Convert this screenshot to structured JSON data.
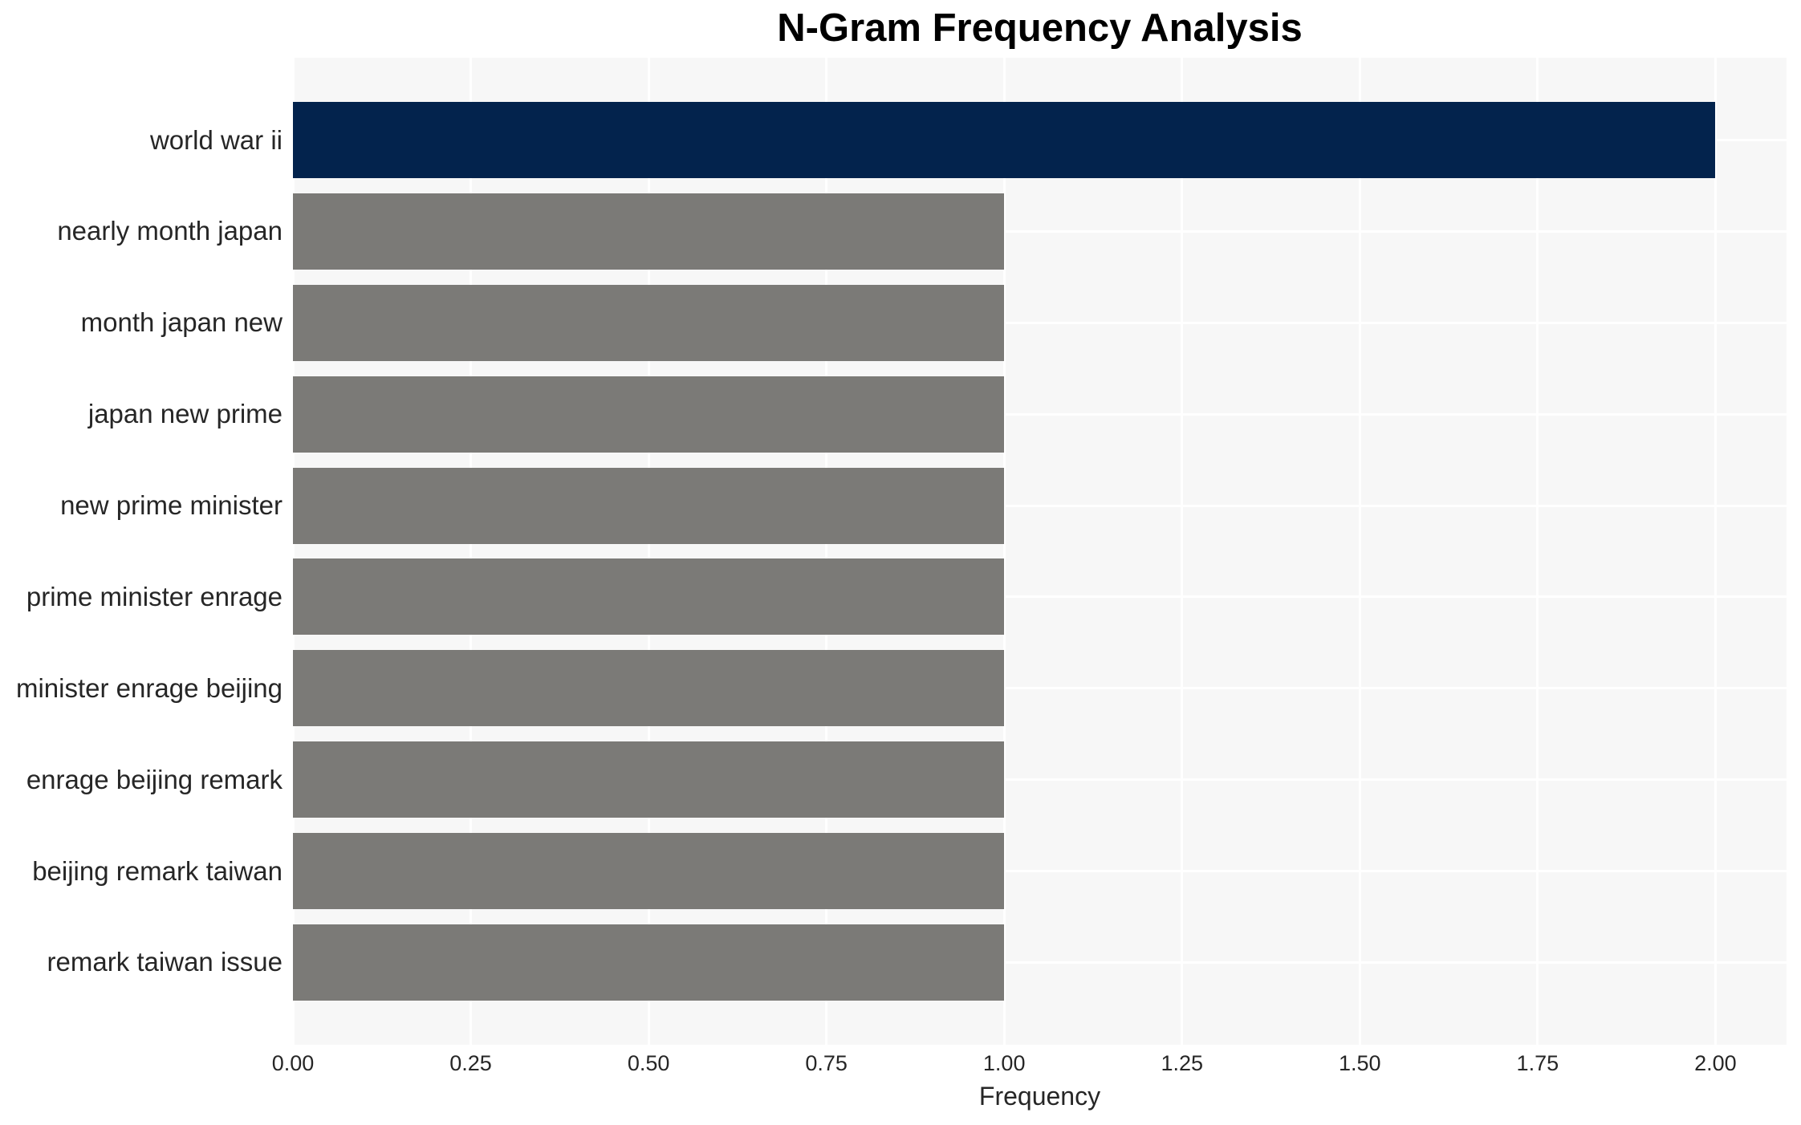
{
  "chart_data": {
    "type": "bar",
    "orientation": "horizontal",
    "title": "N-Gram Frequency Analysis",
    "xlabel": "Frequency",
    "ylabel": "",
    "categories": [
      "world war ii",
      "nearly month japan",
      "month japan new",
      "japan new prime",
      "new prime minister",
      "prime minister enrage",
      "minister enrage beijing",
      "enrage beijing remark",
      "beijing remark taiwan",
      "remark taiwan issue"
    ],
    "values": [
      2,
      1,
      1,
      1,
      1,
      1,
      1,
      1,
      1,
      1
    ],
    "highlight_index": 0,
    "xlim": [
      0,
      2.1
    ],
    "xticks": [
      0,
      0.25,
      0.5,
      0.75,
      1.0,
      1.25,
      1.5,
      1.75,
      2.0
    ],
    "xtick_labels": [
      "0.00",
      "0.25",
      "0.50",
      "0.75",
      "1.00",
      "1.25",
      "1.50",
      "1.75",
      "2.00"
    ],
    "grid": true,
    "legend": false,
    "colors": {
      "highlight_bar": "#03234d",
      "default_bar": "#7b7a77",
      "plot_background": "#f7f7f7",
      "gridline": "#ffffff",
      "tick_text": "#262626",
      "title_text": "#000000"
    }
  }
}
